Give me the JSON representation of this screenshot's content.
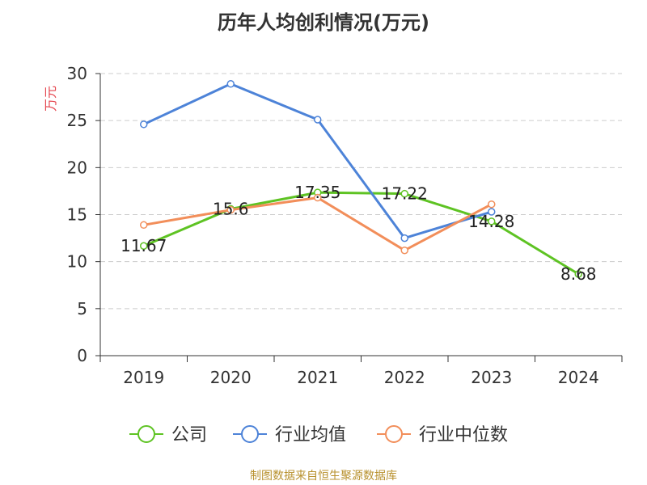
{
  "chart_data": {
    "type": "line",
    "title": "历年人均创利情况(万元)",
    "ylabel": "万元",
    "xlabel": "",
    "categories": [
      "2019",
      "2020",
      "2021",
      "2022",
      "2023",
      "2024"
    ],
    "ylim": [
      0,
      30
    ],
    "yticks": [
      0,
      5,
      10,
      15,
      20,
      25,
      30
    ],
    "grid": true,
    "legend_position": "bottom",
    "series": [
      {
        "name": "公司",
        "color": "#5ec323",
        "values": [
          11.67,
          15.6,
          17.35,
          17.22,
          14.28,
          8.68
        ],
        "labels": [
          "11.67",
          "15.6",
          "17.35",
          "17.22",
          "14.28",
          "8.68"
        ]
      },
      {
        "name": "行业均值",
        "color": "#4d83d8",
        "values": [
          24.6,
          28.9,
          25.1,
          12.5,
          15.3,
          null
        ]
      },
      {
        "name": "行业中位数",
        "color": "#f28e5a",
        "values": [
          13.9,
          15.5,
          16.8,
          11.2,
          16.1,
          null
        ]
      }
    ]
  },
  "colors": {
    "ylabel": "#e5464f",
    "footer": "#b8912e",
    "axis": "#333333",
    "grid": "#cccccc"
  },
  "footer": {
    "source": "制图数据来自恒生聚源数据库"
  }
}
